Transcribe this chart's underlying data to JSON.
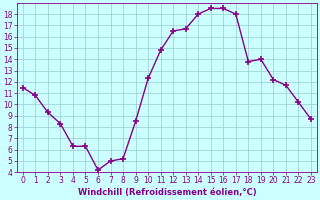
{
  "x": [
    0,
    1,
    2,
    3,
    4,
    5,
    6,
    7,
    8,
    9,
    10,
    11,
    12,
    13,
    14,
    15,
    16,
    17,
    18,
    19,
    20,
    21,
    22,
    23
  ],
  "y": [
    11.5,
    10.8,
    9.3,
    8.3,
    6.3,
    6.3,
    4.2,
    5.0,
    5.2,
    8.5,
    12.3,
    14.8,
    16.5,
    16.7,
    18.0,
    18.5,
    18.5,
    18.0,
    13.8,
    14.0,
    12.2,
    11.7,
    10.2,
    8.7
  ],
  "line_color": "#880088",
  "marker": "+",
  "marker_size": 4,
  "marker_lw": 1.2,
  "bg_color": "#ccffff",
  "grid_color": "#99cccc",
  "xlabel": "Windchill (Refroidissement éolien,°C)",
  "ylim": [
    4,
    19
  ],
  "xlim_min": -0.5,
  "xlim_max": 23.5,
  "yticks": [
    4,
    5,
    6,
    7,
    8,
    9,
    10,
    11,
    12,
    13,
    14,
    15,
    16,
    17,
    18
  ],
  "xticks": [
    0,
    1,
    2,
    3,
    4,
    5,
    6,
    7,
    8,
    9,
    10,
    11,
    12,
    13,
    14,
    15,
    16,
    17,
    18,
    19,
    20,
    21,
    22,
    23
  ],
  "axis_color": "#880088",
  "font_size": 5.5,
  "xlabel_font_size": 6.0,
  "line_width": 1.0
}
